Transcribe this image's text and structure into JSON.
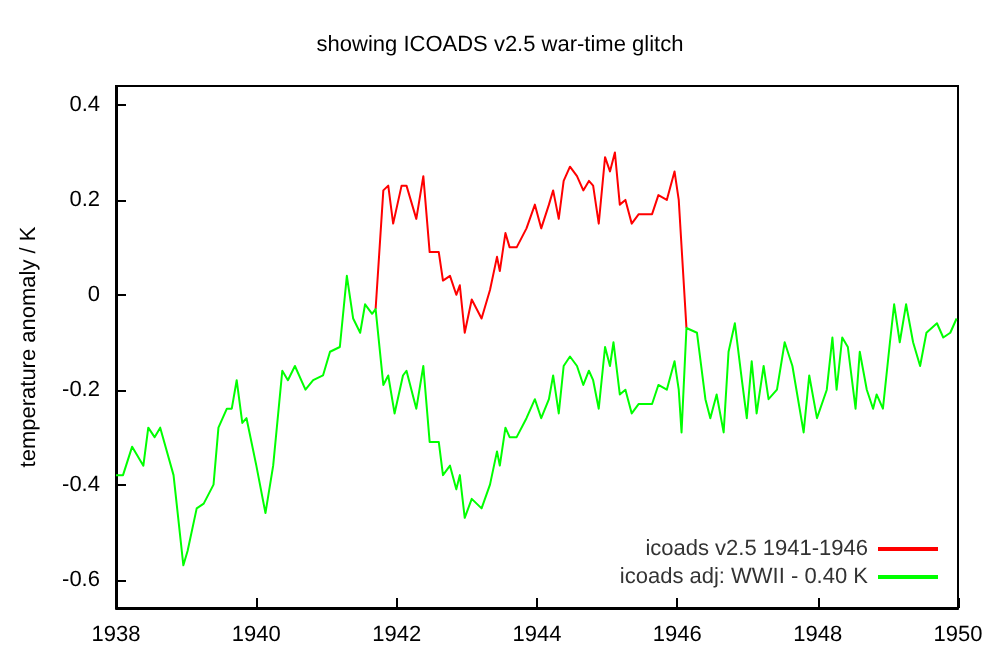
{
  "chart_data": {
    "type": "line",
    "title": "showing ICOADS v2.5 war-time glitch",
    "ylabel": "temperature anomaly / K",
    "xlim": [
      1938,
      1950
    ],
    "xticks": [
      1938,
      1940,
      1942,
      1944,
      1946,
      1948,
      1950
    ],
    "ylim": [
      -0.66,
      0.44
    ],
    "yticks": [
      -0.6,
      -0.4,
      -0.2,
      0,
      0.2,
      0.4
    ],
    "grid": false,
    "legend": "bottom right",
    "marker": "none",
    "line_style": "solid",
    "series": [
      {
        "name": "icoads v2.5 1941-1946",
        "color": "#ff0000",
        "x": [
          1941.7,
          1941.81,
          1941.88,
          1941.95,
          1942.07,
          1942.14,
          1942.28,
          1942.38,
          1942.47,
          1942.6,
          1942.66,
          1942.76,
          1942.85,
          1942.9,
          1942.97,
          1943.07,
          1943.21,
          1943.33,
          1943.43,
          1943.47,
          1943.55,
          1943.61,
          1943.71,
          1943.85,
          1943.97,
          1944.06,
          1944.17,
          1944.23,
          1944.31,
          1944.38,
          1944.47,
          1944.57,
          1944.66,
          1944.74,
          1944.8,
          1944.88,
          1944.97,
          1945.04,
          1945.11,
          1945.18,
          1945.26,
          1945.35,
          1945.45,
          1945.64,
          1945.73,
          1945.85,
          1945.96,
          1946.02,
          1946.13
        ],
        "values": [
          -0.03,
          0.22,
          0.23,
          0.15,
          0.23,
          0.23,
          0.16,
          0.25,
          0.09,
          0.09,
          0.03,
          0.04,
          0.0,
          0.02,
          -0.08,
          -0.01,
          -0.05,
          0.01,
          0.08,
          0.05,
          0.13,
          0.1,
          0.1,
          0.14,
          0.19,
          0.14,
          0.19,
          0.22,
          0.16,
          0.24,
          0.27,
          0.25,
          0.22,
          0.24,
          0.23,
          0.15,
          0.29,
          0.26,
          0.3,
          0.19,
          0.2,
          0.15,
          0.17,
          0.17,
          0.21,
          0.2,
          0.26,
          0.2,
          -0.07
        ]
      },
      {
        "name": "icoads adj: WWII - 0.40 K",
        "color": "#00ff00",
        "x": [
          1938.0,
          1938.1,
          1938.23,
          1938.39,
          1938.46,
          1938.55,
          1938.63,
          1938.82,
          1938.96,
          1939.02,
          1939.15,
          1939.25,
          1939.39,
          1939.46,
          1939.58,
          1939.65,
          1939.72,
          1939.8,
          1939.86,
          1940.0,
          1940.13,
          1940.24,
          1940.37,
          1940.45,
          1940.55,
          1940.7,
          1940.81,
          1940.95,
          1941.05,
          1941.19,
          1941.29,
          1941.38,
          1941.48,
          1941.55,
          1941.65,
          1941.7,
          1941.81,
          1941.88,
          1941.97,
          1942.09,
          1942.14,
          1942.28,
          1942.38,
          1942.47,
          1942.6,
          1942.66,
          1942.76,
          1942.85,
          1942.9,
          1942.97,
          1943.07,
          1943.21,
          1943.33,
          1943.43,
          1943.47,
          1943.55,
          1943.61,
          1943.71,
          1943.85,
          1943.97,
          1944.06,
          1944.17,
          1944.23,
          1944.31,
          1944.38,
          1944.47,
          1944.57,
          1944.66,
          1944.74,
          1944.8,
          1944.88,
          1944.97,
          1945.04,
          1945.09,
          1945.18,
          1945.26,
          1945.35,
          1945.45,
          1945.64,
          1945.73,
          1945.85,
          1945.96,
          1946.02,
          1946.06,
          1946.13,
          1946.28,
          1946.4,
          1946.47,
          1946.56,
          1946.66,
          1946.73,
          1946.82,
          1946.92,
          1946.99,
          1947.06,
          1947.13,
          1947.23,
          1947.3,
          1947.42,
          1947.53,
          1947.64,
          1947.8,
          1947.88,
          1947.99,
          1948.13,
          1948.21,
          1948.27,
          1948.35,
          1948.43,
          1948.54,
          1948.6,
          1948.7,
          1948.79,
          1948.84,
          1948.93,
          1949.03,
          1949.09,
          1949.17,
          1949.26,
          1949.36,
          1949.46,
          1949.55,
          1949.7,
          1949.79,
          1949.89,
          1949.98
        ],
        "values": [
          -0.38,
          -0.38,
          -0.32,
          -0.36,
          -0.28,
          -0.3,
          -0.28,
          -0.38,
          -0.57,
          -0.54,
          -0.45,
          -0.44,
          -0.4,
          -0.28,
          -0.24,
          -0.24,
          -0.18,
          -0.27,
          -0.26,
          -0.36,
          -0.46,
          -0.36,
          -0.16,
          -0.18,
          -0.15,
          -0.2,
          -0.18,
          -0.17,
          -0.12,
          -0.11,
          0.04,
          -0.05,
          -0.08,
          -0.02,
          -0.04,
          -0.03,
          -0.19,
          -0.17,
          -0.25,
          -0.17,
          -0.16,
          -0.24,
          -0.15,
          -0.31,
          -0.31,
          -0.38,
          -0.36,
          -0.41,
          -0.38,
          -0.47,
          -0.43,
          -0.45,
          -0.4,
          -0.33,
          -0.36,
          -0.28,
          -0.3,
          -0.3,
          -0.26,
          -0.22,
          -0.26,
          -0.22,
          -0.17,
          -0.25,
          -0.15,
          -0.13,
          -0.15,
          -0.19,
          -0.16,
          -0.18,
          -0.24,
          -0.11,
          -0.15,
          -0.1,
          -0.21,
          -0.2,
          -0.25,
          -0.23,
          -0.23,
          -0.19,
          -0.2,
          -0.14,
          -0.2,
          -0.29,
          -0.07,
          -0.08,
          -0.22,
          -0.26,
          -0.21,
          -0.29,
          -0.12,
          -0.06,
          -0.18,
          -0.26,
          -0.14,
          -0.25,
          -0.15,
          -0.22,
          -0.2,
          -0.1,
          -0.15,
          -0.29,
          -0.17,
          -0.26,
          -0.2,
          -0.09,
          -0.2,
          -0.09,
          -0.11,
          -0.24,
          -0.12,
          -0.2,
          -0.24,
          -0.21,
          -0.24,
          -0.1,
          -0.02,
          -0.1,
          -0.02,
          -0.1,
          -0.15,
          -0.08,
          -0.06,
          -0.09,
          -0.08,
          -0.05
        ]
      }
    ]
  }
}
